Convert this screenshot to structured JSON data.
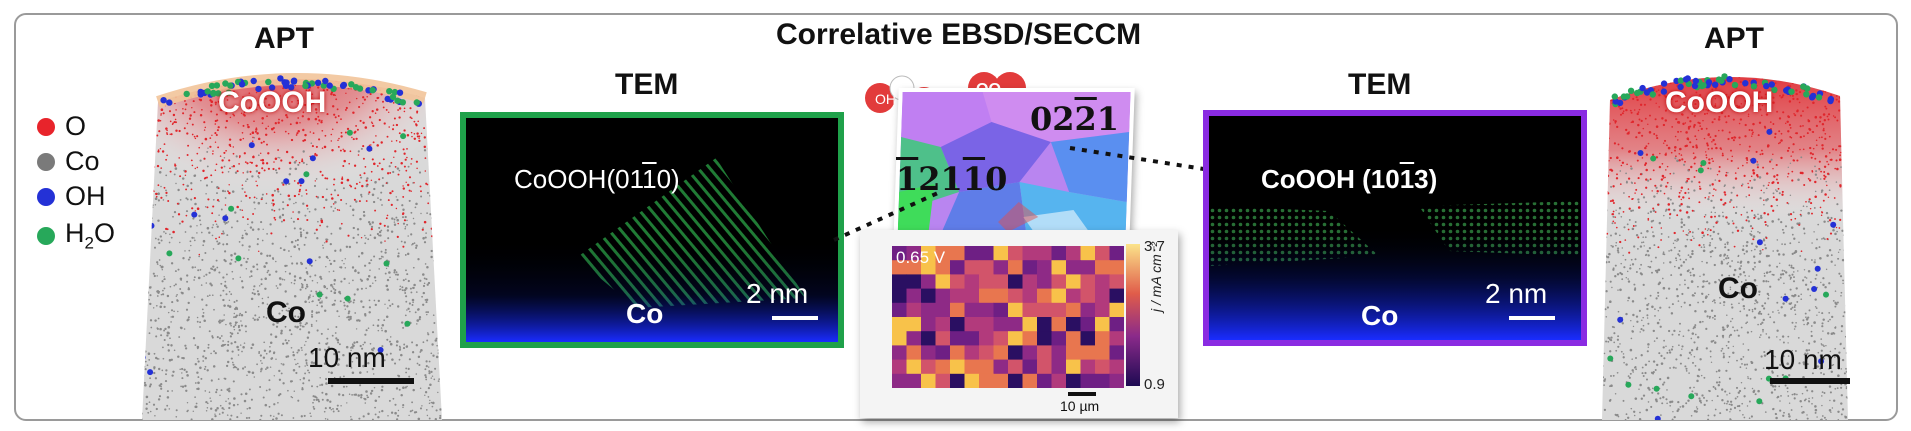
{
  "header": {
    "title": "Correlative EBSD/SECCM"
  },
  "left_apt": {
    "title": "APT",
    "surface_label": "CoOOH",
    "bulk_label": "Co",
    "scale_bar": "10 nm"
  },
  "legend": [
    {
      "label": "O",
      "color": "#e8242b"
    },
    {
      "label": "Co",
      "color": "#7a7a7a"
    },
    {
      "label": "OH",
      "color": "#2431d6"
    },
    {
      "label_main": "H",
      "label_sub": "2",
      "label_tail": "O",
      "color": "#27a85a"
    }
  ],
  "left_tem": {
    "title": "TEM",
    "phase_prefix": "CoOOH(01",
    "phase_bar": "1",
    "phase_suffix": "0)",
    "bulk_label": "Co",
    "scale_bar": "2 nm",
    "border_color": "#1fa14a"
  },
  "center": {
    "ebsd_label_a": {
      "pre": "02",
      "bar": "2",
      "post": "1"
    },
    "ebsd_label_b": {
      "bar1": "1",
      "mid": "21",
      "bar2": "1",
      "post": "0"
    },
    "seccm_potential": "0.65 V",
    "colorbar_max": "3.7",
    "colorbar_min": "0.9",
    "colorbar_label": "j / mA cm⁻²",
    "scale_bar": "10 µm",
    "molecule_water": "OH",
    "molecule_oxygen": "OO"
  },
  "right_tem": {
    "title": "TEM",
    "phase_prefix": "CoOOH (10",
    "phase_bar": "1",
    "phase_suffix": "3)",
    "bulk_label": "Co",
    "scale_bar": "2 nm",
    "border_color": "#8a2be2"
  },
  "right_apt": {
    "title": "APT",
    "surface_label": "CoOOH",
    "bulk_label": "Co",
    "scale_bar": "10 nm"
  }
}
